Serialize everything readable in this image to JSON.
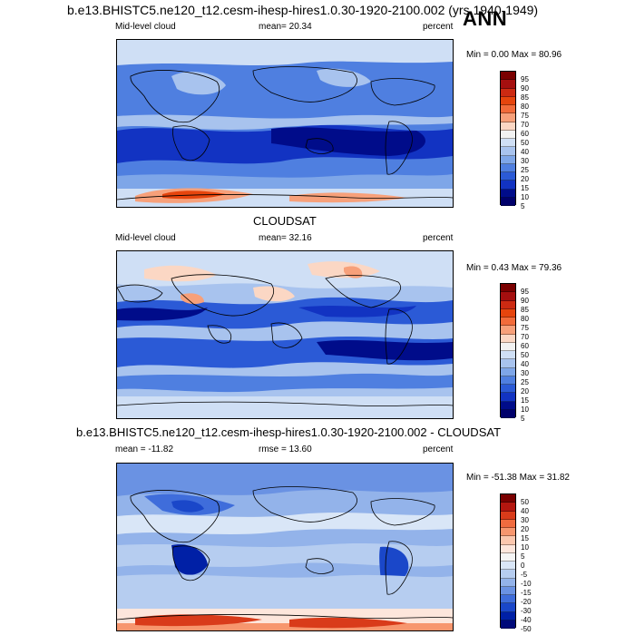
{
  "title": "b.e13.BHISTC5.ne120_t12.cesm-ihesp-hires1.0.30-1920-2100.002 (yrs 1940-1949)",
  "season": "ANN",
  "panels": [
    {
      "left_label": "Mid-level cloud",
      "mean": "mean=  20.34",
      "units": "percent",
      "minmax": "Min =   0.00 Max =  80.96",
      "levels": [
        "95",
        "90",
        "85",
        "80",
        "75",
        "70",
        "60",
        "50",
        "40",
        "30",
        "25",
        "20",
        "15",
        "10",
        "5"
      ]
    },
    {
      "header": "CLOUDSAT",
      "left_label": "Mid-level cloud",
      "mean": "mean=  32.16",
      "units": "percent",
      "minmax": "Min =   0.43 Max =  79.36",
      "levels": [
        "95",
        "90",
        "85",
        "80",
        "75",
        "70",
        "60",
        "50",
        "40",
        "30",
        "25",
        "20",
        "15",
        "10",
        "5"
      ]
    },
    {
      "header": "b.e13.BHISTC5.ne120_t12.cesm-ihesp-hires1.0.30-1920-2100.002 - CLOUDSAT",
      "left_label": "mean = -11.82",
      "mean": "rmse =  13.60",
      "units": "percent",
      "minmax": "Min = -51.38 Max =  31.82",
      "levels": [
        "50",
        "40",
        "30",
        "20",
        "15",
        "10",
        "5",
        "0",
        "-5",
        "-10",
        "-15",
        "-20",
        "-30",
        "-40",
        "-50"
      ]
    }
  ],
  "colors": {
    "abs_scale": [
      "#7a0000",
      "#a50f0f",
      "#cc2a12",
      "#e6450d",
      "#f26b3a",
      "#f7a07a",
      "#fbd7c4",
      "#f2f2f2",
      "#cfdff5",
      "#a8c3ee",
      "#7ea6e8",
      "#4f7fe0",
      "#2b5ad6",
      "#1233c2",
      "#000c8a",
      "#00006b"
    ],
    "diff_scale": [
      "#7a0000",
      "#b4160f",
      "#d93b1a",
      "#f06b3f",
      "#f7966e",
      "#fbc7ae",
      "#fde6dc",
      "#f5f5f5",
      "#d9e6f7",
      "#b6cdf0",
      "#93b3ea",
      "#6a92e3",
      "#3f6ddb",
      "#1a47c9",
      "#0020a6",
      "#000a7a"
    ]
  }
}
